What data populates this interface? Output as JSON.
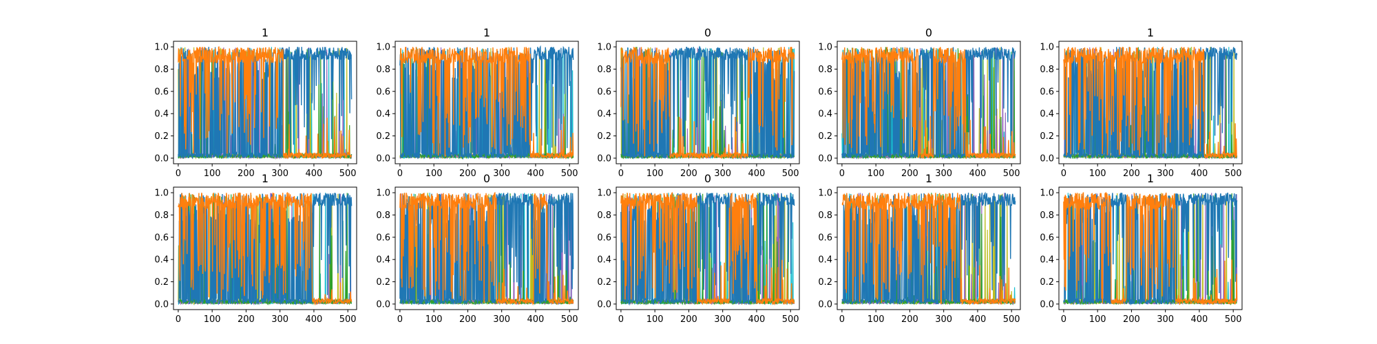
{
  "chart_data": {
    "type": "line",
    "layout": "2x5 grid of subplots",
    "grid": false,
    "legend": "none",
    "series_colors": [
      "#1f77b4",
      "#ff7f0e",
      "#17becf",
      "#bcbd22",
      "#9467bd",
      "#2ca02c"
    ],
    "x_ticks": [
      0,
      100,
      200,
      300,
      400,
      500
    ],
    "y_ticks": [
      0.0,
      0.2,
      0.4,
      0.6,
      0.8,
      1.0
    ],
    "x_tick_labels": [
      "0",
      "100",
      "200",
      "300",
      "400",
      "500"
    ],
    "y_tick_labels": [
      "0.0",
      "0.2",
      "0.4",
      "0.6",
      "0.8",
      "1.0"
    ],
    "xlim": [
      -14,
      526
    ],
    "ylim": [
      -0.05,
      1.05
    ],
    "panels": [
      {
        "title": "1",
        "orange_dominant_until": 310
      },
      {
        "title": "1",
        "orange_dominant_until": 385
      },
      {
        "title": "0",
        "orange_dominant_until": [
          145,
          375
        ]
      },
      {
        "title": "0",
        "orange_dominant_until": [
          225,
          270,
          365
        ]
      },
      {
        "title": "1",
        "orange_dominant_until": 415
      },
      {
        "title": "1",
        "orange_dominant_until": 395
      },
      {
        "title": "0",
        "orange_dominant_until": [
          285,
          395,
          435
        ]
      },
      {
        "title": "0",
        "orange_dominant_until": [
          225,
          320,
          400
        ]
      },
      {
        "title": "1",
        "orange_dominant_until": 350
      },
      {
        "title": "1",
        "orange_dominant_until": [
          140,
          185,
          330
        ]
      }
    ]
  }
}
